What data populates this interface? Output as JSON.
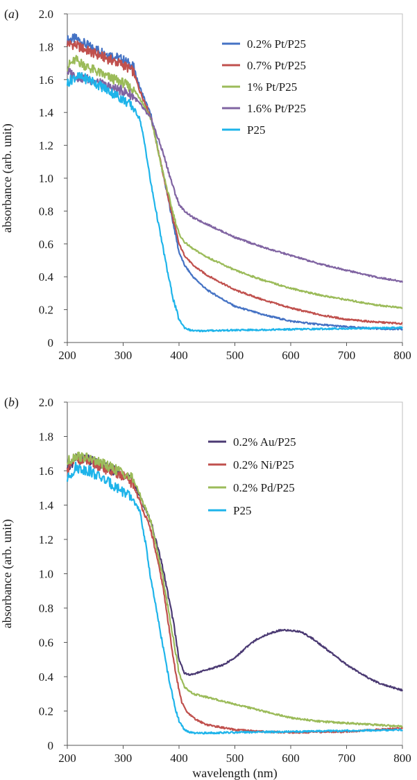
{
  "chart_data": [
    {
      "type": "line",
      "panel_label": "(a)",
      "xlabel": "",
      "ylabel": "absorbance (arb. unit)",
      "xlim": [
        200,
        800
      ],
      "ylim": [
        0,
        2.0
      ],
      "xticks": [
        200,
        300,
        400,
        500,
        600,
        700,
        800
      ],
      "xtick_labels": [
        "200",
        "300",
        "400",
        "500",
        "600",
        "700",
        "800"
      ],
      "yticks": [
        0,
        0.2,
        0.4,
        0.6,
        0.8,
        1.0,
        1.2,
        1.4,
        1.6,
        1.8,
        2.0
      ],
      "ytick_labels": [
        "0",
        "0.2",
        "0.4",
        "0.6",
        "0.8",
        "1.0",
        "1.2",
        "1.4",
        "1.6",
        "1.8",
        "2.0"
      ],
      "grid": false,
      "legend_position": "top-right",
      "series": [
        {
          "name": "0.2% Pt/P25",
          "color": "#4472c4",
          "x": [
            200,
            215,
            240,
            270,
            300,
            318,
            330,
            350,
            370,
            390,
            400,
            410,
            425,
            450,
            500,
            550,
            600,
            650,
            700,
            750,
            800
          ],
          "y": [
            1.84,
            1.85,
            1.8,
            1.76,
            1.72,
            1.68,
            1.55,
            1.38,
            1.05,
            0.72,
            0.55,
            0.47,
            0.4,
            0.32,
            0.22,
            0.17,
            0.13,
            0.11,
            0.095,
            0.085,
            0.08
          ]
        },
        {
          "name": "0.7% Pt/P25",
          "color": "#c0504d",
          "x": [
            200,
            215,
            240,
            270,
            300,
            318,
            330,
            350,
            370,
            390,
            400,
            410,
            425,
            450,
            500,
            550,
            600,
            650,
            700,
            750,
            800
          ],
          "y": [
            1.82,
            1.81,
            1.77,
            1.73,
            1.69,
            1.65,
            1.53,
            1.37,
            1.05,
            0.74,
            0.6,
            0.53,
            0.47,
            0.41,
            0.32,
            0.26,
            0.21,
            0.17,
            0.14,
            0.125,
            0.115
          ]
        },
        {
          "name": "1% Pt/P25",
          "color": "#9bbb59",
          "x": [
            200,
            215,
            240,
            270,
            300,
            318,
            330,
            350,
            370,
            390,
            400,
            410,
            425,
            450,
            500,
            550,
            600,
            650,
            700,
            750,
            800
          ],
          "y": [
            1.68,
            1.72,
            1.67,
            1.62,
            1.58,
            1.54,
            1.49,
            1.36,
            1.05,
            0.78,
            0.66,
            0.61,
            0.57,
            0.52,
            0.44,
            0.38,
            0.33,
            0.29,
            0.26,
            0.23,
            0.21
          ]
        },
        {
          "name": "1.6% Pt/P25",
          "color": "#8064a2",
          "x": [
            200,
            215,
            240,
            270,
            300,
            318,
            330,
            350,
            370,
            390,
            400,
            410,
            425,
            450,
            500,
            550,
            600,
            650,
            700,
            750,
            800
          ],
          "y": [
            1.65,
            1.62,
            1.6,
            1.56,
            1.53,
            1.5,
            1.45,
            1.36,
            1.17,
            0.94,
            0.84,
            0.8,
            0.76,
            0.72,
            0.64,
            0.58,
            0.53,
            0.48,
            0.44,
            0.4,
            0.37
          ]
        },
        {
          "name": "P25",
          "color": "#1eb4ea",
          "x": [
            200,
            215,
            240,
            270,
            300,
            318,
            330,
            340,
            350,
            360,
            370,
            380,
            390,
            400,
            410,
            420,
            430,
            450,
            500,
            600,
            700,
            800
          ],
          "y": [
            1.58,
            1.62,
            1.6,
            1.54,
            1.48,
            1.43,
            1.36,
            1.18,
            0.96,
            0.78,
            0.6,
            0.42,
            0.26,
            0.14,
            0.09,
            0.075,
            0.07,
            0.072,
            0.075,
            0.08,
            0.085,
            0.09
          ]
        }
      ]
    },
    {
      "type": "line",
      "panel_label": "(b)",
      "xlabel": "wavelength (nm)",
      "ylabel": "absorbance (arb. unit)",
      "xlim": [
        200,
        800
      ],
      "ylim": [
        0,
        2.0
      ],
      "xticks": [
        200,
        300,
        400,
        500,
        600,
        700,
        800
      ],
      "xtick_labels": [
        "200",
        "300",
        "400",
        "500",
        "600",
        "700",
        "800"
      ],
      "yticks": [
        0,
        0.2,
        0.4,
        0.6,
        0.8,
        1.0,
        1.2,
        1.4,
        1.6,
        1.8,
        2.0
      ],
      "ytick_labels": [
        "0",
        "0.2",
        "0.4",
        "0.6",
        "0.8",
        "1.0",
        "1.2",
        "1.4",
        "1.6",
        "1.8",
        "2.0"
      ],
      "grid": false,
      "legend_position": "top-right",
      "series": [
        {
          "name": "0.2% Au/P25",
          "color": "#4b3a73",
          "x": [
            200,
            215,
            240,
            270,
            300,
            318,
            330,
            350,
            370,
            390,
            400,
            410,
            420,
            440,
            460,
            480,
            500,
            520,
            540,
            560,
            580,
            600,
            620,
            640,
            660,
            680,
            700,
            720,
            740,
            760,
            780,
            800
          ],
          "y": [
            1.6,
            1.68,
            1.66,
            1.62,
            1.58,
            1.54,
            1.45,
            1.3,
            1.05,
            0.72,
            0.5,
            0.42,
            0.41,
            0.43,
            0.45,
            0.47,
            0.51,
            0.57,
            0.62,
            0.65,
            0.67,
            0.67,
            0.66,
            0.62,
            0.57,
            0.52,
            0.47,
            0.43,
            0.39,
            0.36,
            0.34,
            0.32
          ]
        },
        {
          "name": "0.2% Ni/P25",
          "color": "#c0504d",
          "x": [
            200,
            215,
            240,
            270,
            300,
            318,
            330,
            350,
            370,
            385,
            395,
            405,
            415,
            430,
            450,
            500,
            550,
            600,
            700,
            800
          ],
          "y": [
            1.6,
            1.67,
            1.65,
            1.61,
            1.57,
            1.52,
            1.42,
            1.25,
            0.95,
            0.62,
            0.4,
            0.25,
            0.19,
            0.15,
            0.12,
            0.09,
            0.08,
            0.075,
            0.08,
            0.1
          ]
        },
        {
          "name": "0.2% Pd/P25",
          "color": "#9bbb59",
          "x": [
            200,
            215,
            240,
            270,
            300,
            318,
            330,
            350,
            370,
            390,
            400,
            410,
            425,
            450,
            475,
            500,
            550,
            600,
            650,
            700,
            750,
            800
          ],
          "y": [
            1.65,
            1.69,
            1.67,
            1.63,
            1.59,
            1.55,
            1.46,
            1.3,
            1.0,
            0.62,
            0.42,
            0.34,
            0.3,
            0.28,
            0.26,
            0.24,
            0.2,
            0.16,
            0.14,
            0.13,
            0.12,
            0.11
          ]
        },
        {
          "name": "P25",
          "color": "#1eb4ea",
          "x": [
            200,
            215,
            240,
            270,
            300,
            318,
            330,
            340,
            350,
            360,
            370,
            380,
            390,
            400,
            410,
            420,
            430,
            450,
            500,
            600,
            700,
            800
          ],
          "y": [
            1.55,
            1.62,
            1.6,
            1.54,
            1.48,
            1.43,
            1.36,
            1.18,
            0.96,
            0.78,
            0.6,
            0.42,
            0.26,
            0.14,
            0.09,
            0.075,
            0.07,
            0.072,
            0.075,
            0.08,
            0.085,
            0.09
          ]
        }
      ]
    }
  ]
}
